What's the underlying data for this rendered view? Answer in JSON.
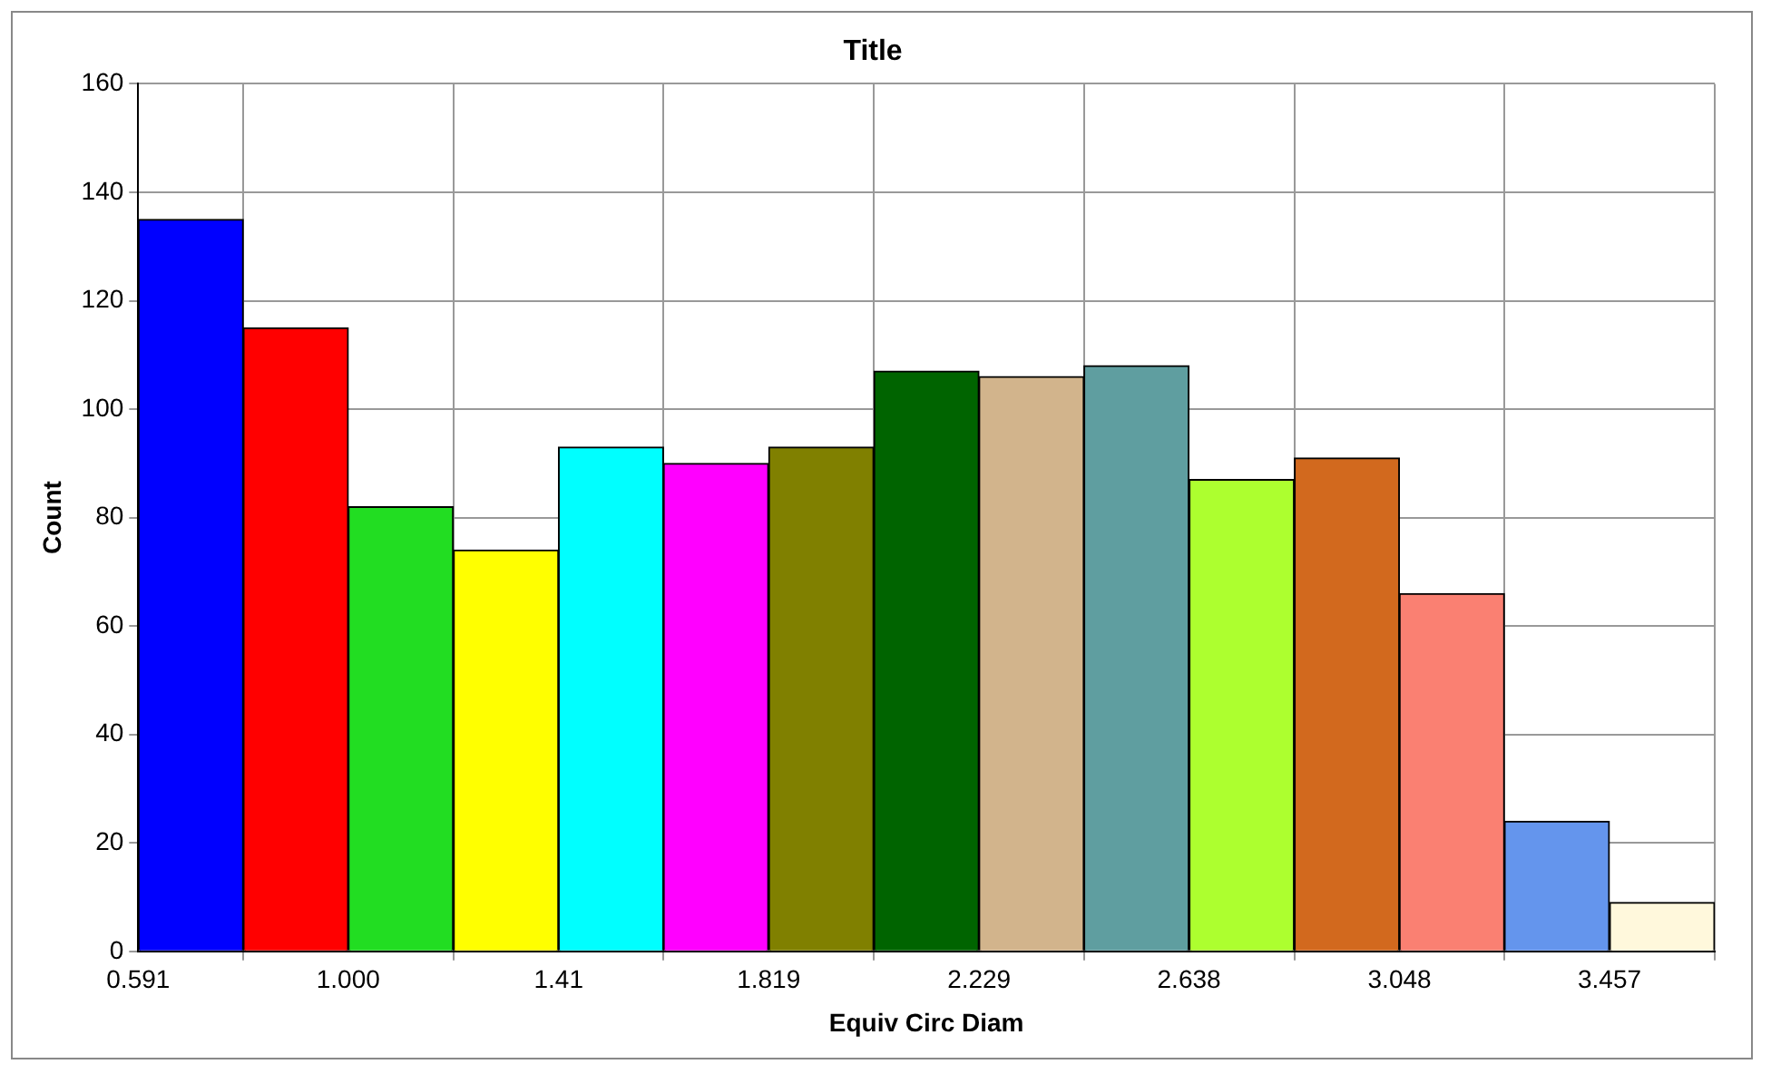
{
  "chart_data": {
    "type": "histogram",
    "title": "Title",
    "xlabel": "Equiv Circ Diam",
    "ylabel": "Count",
    "bins": [
      0.591,
      0.796,
      1.0,
      1.205,
      1.41,
      1.614,
      1.819,
      2.024,
      2.229,
      2.433,
      2.638,
      2.843,
      3.048,
      3.252,
      3.457,
      3.662
    ],
    "values": [
      135,
      115,
      82,
      74,
      93,
      90,
      93,
      107,
      106,
      108,
      87,
      91,
      66,
      24,
      9
    ],
    "colors": [
      "#0000ff",
      "#ff0000",
      "#22dd22",
      "#ffff00",
      "#00ffff",
      "#ff00ff",
      "#808000",
      "#006400",
      "#d2b48c",
      "#5f9ea0",
      "#adff2f",
      "#d2691e",
      "#fa8072",
      "#6495ed",
      "#fff8dc"
    ],
    "xlim": [
      0.591,
      3.662
    ],
    "xticks": [
      0.591,
      {
        "value": 1.0,
        "label": "1.000"
      },
      1.41,
      1.819,
      2.229,
      2.638,
      3.048,
      3.457
    ],
    "ylim": [
      0,
      160
    ],
    "yticks": [
      0,
      20,
      40,
      60,
      80,
      100,
      120,
      140,
      160
    ],
    "grid": true,
    "legend": false
  }
}
